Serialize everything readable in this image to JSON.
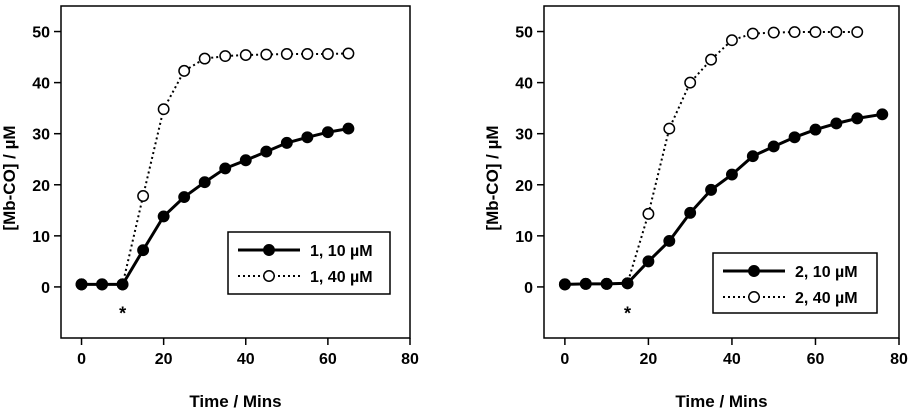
{
  "chart_data": [
    {
      "type": "line",
      "xlabel": "Time / Mins",
      "ylabel": "[Mb-CO] / µM",
      "xlim": [
        -5,
        80
      ],
      "ylim": [
        -10,
        55
      ],
      "xticks": [
        0,
        20,
        40,
        60,
        80
      ],
      "yticks": [
        0,
        10,
        20,
        30,
        40,
        50
      ],
      "grid": false,
      "legend_position": "center-right",
      "annotations": [
        {
          "text": "*",
          "x": 10,
          "y": -4
        }
      ],
      "series": [
        {
          "name": "1, 10 µM",
          "marker": "filled-circle",
          "line_style": "solid",
          "x": [
            0,
            5,
            10,
            15,
            20,
            25,
            30,
            35,
            40,
            45,
            50,
            55,
            60,
            65
          ],
          "y": [
            0.5,
            0.5,
            0.5,
            7.2,
            13.8,
            17.6,
            20.5,
            23.2,
            24.8,
            26.5,
            28.2,
            29.3,
            30.3,
            31.0
          ]
        },
        {
          "name": "1, 40 µM",
          "marker": "open-circle",
          "line_style": "dotted",
          "x": [
            0,
            5,
            10,
            15,
            20,
            25,
            30,
            35,
            40,
            45,
            50,
            55,
            60,
            65
          ],
          "y": [
            0.5,
            0.5,
            0.5,
            17.8,
            34.8,
            42.3,
            44.7,
            45.2,
            45.4,
            45.5,
            45.6,
            45.6,
            45.6,
            45.7
          ]
        }
      ]
    },
    {
      "type": "line",
      "xlabel": "Time / Mins",
      "ylabel": "[Mb-CO] / µM",
      "xlim": [
        -5,
        80
      ],
      "ylim": [
        -10,
        55
      ],
      "xticks": [
        0,
        20,
        40,
        60,
        80
      ],
      "yticks": [
        0,
        10,
        20,
        30,
        40,
        50
      ],
      "grid": false,
      "legend_position": "center-right",
      "annotations": [
        {
          "text": "*",
          "x": 15,
          "y": -4
        }
      ],
      "series": [
        {
          "name": "2, 10 µM",
          "marker": "filled-circle",
          "line_style": "solid",
          "x": [
            0,
            5,
            10,
            15,
            20,
            25,
            30,
            35,
            40,
            45,
            50,
            55,
            60,
            65,
            70,
            76
          ],
          "y": [
            0.5,
            0.6,
            0.6,
            0.7,
            5.0,
            9.0,
            14.5,
            19.0,
            22.0,
            25.6,
            27.5,
            29.3,
            30.8,
            32.0,
            33.0,
            33.8
          ]
        },
        {
          "name": "2, 40 µM",
          "marker": "open-circle",
          "line_style": "dotted",
          "x": [
            0,
            5,
            10,
            15,
            20,
            25,
            30,
            35,
            40,
            45,
            50,
            55,
            60,
            65,
            70
          ],
          "y": [
            0.5,
            0.6,
            0.6,
            0.7,
            14.3,
            31.0,
            40.0,
            44.5,
            48.3,
            49.6,
            49.8,
            49.9,
            49.9,
            49.9,
            49.9
          ]
        }
      ]
    }
  ]
}
